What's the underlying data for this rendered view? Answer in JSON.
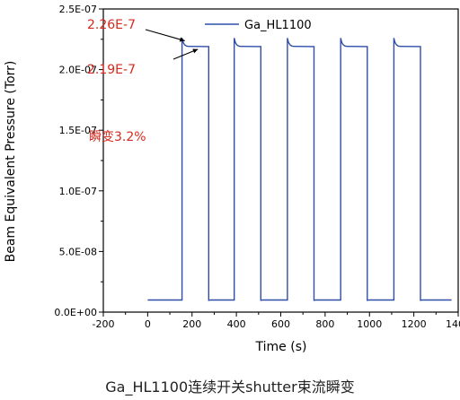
{
  "chart_data": {
    "type": "line",
    "xlabel": "Time (s)",
    "ylabel": "Beam Equivalent Pressure (Torr)",
    "xlim": [
      -200,
      1400
    ],
    "ylim": [
      0,
      2.5e-07
    ],
    "x_ticks": [
      -200,
      0,
      200,
      400,
      600,
      800,
      1000,
      1200,
      1400
    ],
    "y_ticks": [
      0,
      5e-08,
      1e-07,
      1.5e-07,
      2e-07,
      2.5e-07
    ],
    "y_tick_labels": [
      "0.0E+00",
      "5.0E-08",
      "1.0E-07",
      "1.5E-07",
      "2.0E-07",
      "2.5E-07"
    ],
    "grid": false,
    "legend_position": "top-right",
    "series": [
      {
        "name": "Ga_HL1100",
        "color": "#2f4ea8",
        "baseline": 1e-08,
        "open_peak": 2.26e-07,
        "open_steady": 2.19e-07,
        "shutter_open_intervals": [
          [
            155,
            275
          ],
          [
            390,
            510
          ],
          [
            630,
            750
          ],
          [
            870,
            990
          ],
          [
            1110,
            1230
          ]
        ],
        "x_start": 0,
        "x_end": 1370
      }
    ],
    "annotations": [
      {
        "text": "2.26E-7",
        "color": "#d42a1e",
        "points_to_x": 155,
        "points_to_y": 2.26e-07
      },
      {
        "text": "2.19E-7",
        "color": "#d42a1e",
        "points_to_x": 275,
        "points_to_y": 2.19e-07
      },
      {
        "text": "瞬变3.2%",
        "color": "#d42a1e"
      }
    ]
  },
  "caption": "Ga_HL1100连续开关shutter束流瞬变"
}
